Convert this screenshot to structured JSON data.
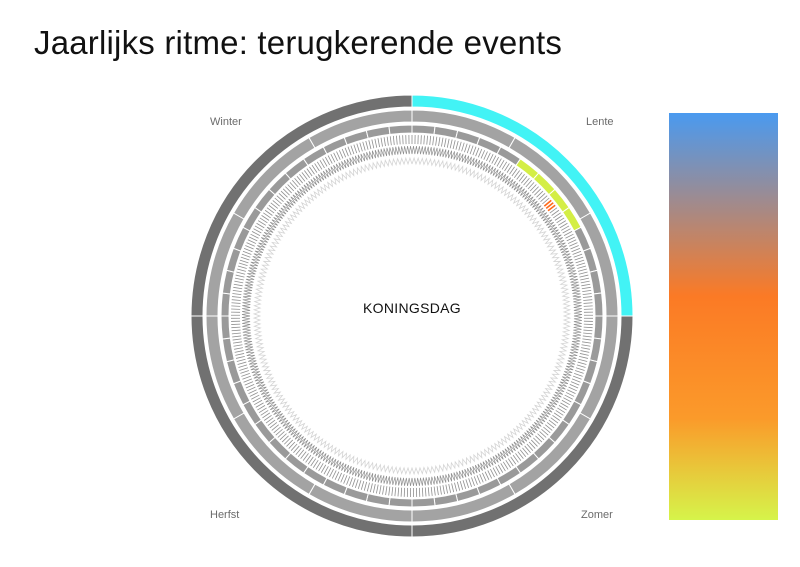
{
  "title": "Jaarlijks ritme: terugkerende events",
  "center_label": "KONINGSDAG",
  "seasons": {
    "winter": "Winter",
    "spring": "Lente",
    "summer": "Zomer",
    "autumn": "Herfst"
  },
  "colors": {
    "season_ring": "#717171",
    "highlight_ring": "#42f3f5",
    "month_ring": "#a3a3a3",
    "week_ring": "#9a9a9a",
    "day_ring": "#8f8f8f",
    "hour_ring": "#d4d4d4",
    "highlight_week": "#d4ee45",
    "highlight_day": "#ff6a1a",
    "legend_top": "#4a9af0",
    "legend_mid": "#fb7a25",
    "legend_bottom": "#d6f44a"
  },
  "wheel": {
    "season_highlight": "Lente",
    "month_highlight_index": 3,
    "highlight_day_of_year": 117
  }
}
